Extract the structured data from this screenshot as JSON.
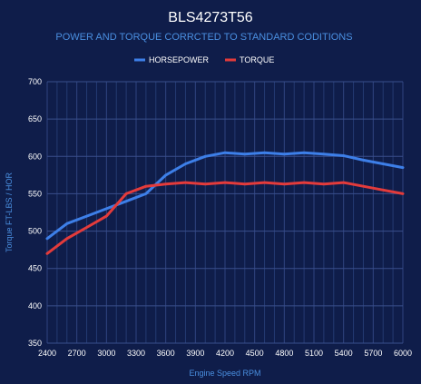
{
  "chart_data": {
    "type": "line",
    "title": "BLS4273T56",
    "subtitle": "POWER AND TORQUE CORRCTED TO STANDARD CODITIONS",
    "xlabel": "Engine Speed RPM",
    "ylabel": "Torque FT-LBS / HOR",
    "legend_position": "top-center",
    "grid": true,
    "xlim": [
      2400,
      6000
    ],
    "ylim": [
      350,
      700
    ],
    "x_ticks": [
      2400,
      2700,
      3000,
      3300,
      3600,
      3900,
      4200,
      4500,
      4800,
      5100,
      5400,
      5700,
      6000
    ],
    "y_ticks": [
      350,
      400,
      450,
      500,
      550,
      600,
      650,
      700
    ],
    "x": [
      2400,
      2600,
      2800,
      3000,
      3200,
      3400,
      3600,
      3800,
      4000,
      4200,
      4400,
      4600,
      4800,
      5000,
      5200,
      5400,
      5600,
      5800,
      6000
    ],
    "series": [
      {
        "name": "HORSEPOWER",
        "color": "#3d7fe8",
        "values": [
          490,
          510,
          520,
          530,
          540,
          550,
          575,
          590,
          600,
          605,
          603,
          605,
          603,
          605,
          603,
          601,
          595,
          590,
          585
        ]
      },
      {
        "name": "TORQUE",
        "color": "#e33b3b",
        "values": [
          470,
          490,
          505,
          520,
          550,
          560,
          563,
          565,
          563,
          565,
          563,
          565,
          563,
          565,
          563,
          565,
          560,
          555,
          550
        ]
      }
    ]
  }
}
